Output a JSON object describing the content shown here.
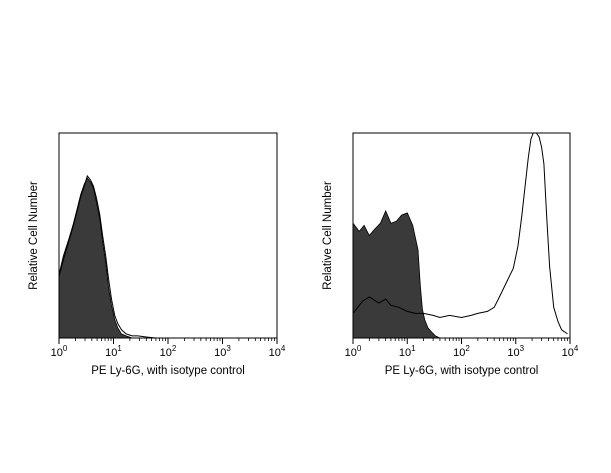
{
  "colors": {
    "filled": "#3a3a3a",
    "outline": "#000000",
    "background": "#ffffff"
  },
  "chart_data": [
    {
      "type": "area",
      "xlabel": "PE Ly-6G, with isotype control",
      "ylabel": "Relative Cell Number",
      "xscale": "log",
      "xlim": [
        1,
        10000
      ],
      "ylim": [
        0,
        1
      ],
      "x_ticks": [
        1,
        10,
        100,
        1000,
        10000
      ],
      "x_tick_labels": [
        {
          "base": "10",
          "exp": "0"
        },
        {
          "base": "10",
          "exp": "1"
        },
        {
          "base": "10",
          "exp": "2"
        },
        {
          "base": "10",
          "exp": "3"
        },
        {
          "base": "10",
          "exp": "4"
        }
      ],
      "series": [
        {
          "style": "filled",
          "x": [
            1.0,
            1.2,
            1.5,
            1.8,
            2.1,
            2.5,
            2.9,
            3.3,
            3.8,
            4.3,
            4.9,
            5.6,
            6.3,
            7.2,
            8.1,
            9.2,
            10.5,
            12.0,
            14.0,
            17.0,
            22.0
          ],
          "y": [
            0.31,
            0.4,
            0.48,
            0.55,
            0.62,
            0.7,
            0.75,
            0.78,
            0.76,
            0.73,
            0.66,
            0.58,
            0.47,
            0.37,
            0.25,
            0.16,
            0.09,
            0.05,
            0.02,
            0.01,
            0.0
          ]
        },
        {
          "style": "outline",
          "x": [
            1.0,
            1.2,
            1.5,
            1.8,
            2.1,
            2.5,
            2.9,
            3.3,
            3.8,
            4.3,
            4.9,
            5.6,
            6.3,
            7.2,
            8.1,
            9.2,
            10.5,
            12.0,
            14.0,
            17.0,
            22.0,
            28.0,
            40.0,
            60.0
          ],
          "y": [
            0.3,
            0.38,
            0.47,
            0.54,
            0.61,
            0.69,
            0.74,
            0.79,
            0.77,
            0.74,
            0.68,
            0.6,
            0.5,
            0.4,
            0.29,
            0.19,
            0.11,
            0.07,
            0.04,
            0.02,
            0.01,
            0.01,
            0.005,
            0.0
          ]
        }
      ]
    },
    {
      "type": "area",
      "xlabel": "PE Ly-6G, with isotype control",
      "ylabel": "Relative Cell Number",
      "xscale": "log",
      "xlim": [
        1,
        10000
      ],
      "ylim": [
        0,
        1
      ],
      "x_ticks": [
        1,
        10,
        100,
        1000,
        10000
      ],
      "x_tick_labels": [
        {
          "base": "10",
          "exp": "0"
        },
        {
          "base": "10",
          "exp": "1"
        },
        {
          "base": "10",
          "exp": "2"
        },
        {
          "base": "10",
          "exp": "3"
        },
        {
          "base": "10",
          "exp": "4"
        }
      ],
      "series": [
        {
          "style": "filled",
          "x": [
            1.0,
            1.3,
            1.6,
            2.0,
            2.5,
            3.2,
            4.0,
            5.0,
            6.3,
            7.9,
            10.0,
            12.6,
            15.8,
            17.5,
            19.0,
            21.0,
            24.0,
            28.0,
            33.0,
            40.0
          ],
          "y": [
            0.56,
            0.52,
            0.55,
            0.5,
            0.53,
            0.56,
            0.62,
            0.56,
            0.57,
            0.6,
            0.61,
            0.55,
            0.43,
            0.25,
            0.14,
            0.09,
            0.05,
            0.03,
            0.01,
            0.0
          ]
        },
        {
          "style": "outline",
          "x": [
            1.0,
            1.5,
            2.0,
            3.0,
            4.0,
            5.0,
            7.0,
            10.0,
            14.0,
            20.0,
            30.0,
            40.0,
            60.0,
            100.0,
            150.0,
            200.0,
            300.0,
            400.0,
            500.0,
            700.0,
            900.0,
            1100.0,
            1300.0,
            1500.0,
            1700.0,
            1900.0,
            2100.0,
            2400.0,
            2700.0,
            3000.0,
            3300.0,
            3700.0,
            4200.0,
            5000.0,
            6000.0,
            7000.0,
            8000.0,
            9000.0
          ],
          "y": [
            0.12,
            0.18,
            0.2,
            0.17,
            0.19,
            0.16,
            0.15,
            0.13,
            0.12,
            0.12,
            0.11,
            0.1,
            0.11,
            0.1,
            0.11,
            0.12,
            0.13,
            0.15,
            0.2,
            0.28,
            0.34,
            0.45,
            0.6,
            0.75,
            0.88,
            0.97,
            1.0,
            1.0,
            0.98,
            0.93,
            0.85,
            0.6,
            0.35,
            0.15,
            0.08,
            0.04,
            0.03,
            0.02
          ]
        }
      ]
    }
  ]
}
